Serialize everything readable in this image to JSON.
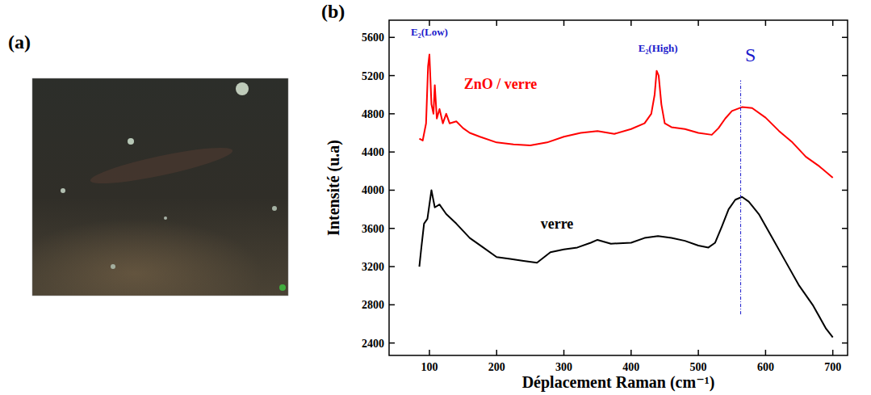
{
  "chart_data": [
    {
      "type": "image",
      "panel_label": "(a)"
    },
    {
      "type": "line",
      "panel_label": "(b)",
      "xlabel": "Déplacement Raman (cm⁻¹)",
      "ylabel": "Intensité (u.a)",
      "xlim": [
        40,
        722
      ],
      "ylim": [
        2270,
        5780
      ],
      "xticks": [
        100,
        200,
        300,
        400,
        500,
        600,
        700
      ],
      "yticks": [
        2400,
        2800,
        3200,
        3600,
        4000,
        4400,
        4800,
        5200,
        5600
      ],
      "grid": false,
      "series": [
        {
          "name": "ZnO / verre",
          "color": "#ff0000",
          "x": [
            85,
            90,
            95,
            98,
            100,
            103,
            106,
            108,
            111,
            115,
            120,
            125,
            130,
            140,
            150,
            160,
            175,
            200,
            225,
            250,
            275,
            300,
            325,
            350,
            375,
            400,
            420,
            430,
            435,
            438,
            441,
            445,
            450,
            460,
            480,
            500,
            520,
            530,
            540,
            550,
            565,
            580,
            600,
            620,
            640,
            660,
            680,
            700
          ],
          "values": [
            4540,
            4520,
            4700,
            5300,
            5420,
            4900,
            4800,
            5100,
            4750,
            4850,
            4700,
            4800,
            4700,
            4720,
            4650,
            4600,
            4560,
            4500,
            4480,
            4470,
            4500,
            4560,
            4600,
            4620,
            4590,
            4640,
            4700,
            4800,
            5000,
            5250,
            5200,
            4900,
            4700,
            4660,
            4640,
            4600,
            4580,
            4650,
            4750,
            4830,
            4870,
            4860,
            4760,
            4620,
            4500,
            4350,
            4250,
            4130
          ]
        },
        {
          "name": "verre",
          "color": "#000000",
          "x": [
            85,
            88,
            92,
            97,
            103,
            108,
            115,
            125,
            140,
            160,
            180,
            200,
            220,
            240,
            260,
            280,
            300,
            320,
            340,
            350,
            370,
            400,
            420,
            440,
            460,
            480,
            500,
            515,
            525,
            535,
            545,
            555,
            565,
            575,
            590,
            610,
            630,
            650,
            670,
            690,
            700
          ],
          "values": [
            3200,
            3400,
            3650,
            3700,
            4000,
            3820,
            3850,
            3750,
            3650,
            3500,
            3400,
            3300,
            3280,
            3260,
            3240,
            3350,
            3380,
            3400,
            3450,
            3480,
            3440,
            3450,
            3500,
            3520,
            3500,
            3470,
            3420,
            3400,
            3450,
            3620,
            3800,
            3900,
            3930,
            3880,
            3750,
            3500,
            3250,
            3000,
            2800,
            2550,
            2460
          ]
        }
      ],
      "annotations": [
        {
          "text": "E₂(Low)",
          "x": 100,
          "y": 5620,
          "color": "#1a1acc"
        },
        {
          "text": "E₂(High)",
          "x": 440,
          "y": 5450,
          "color": "#1a1acc"
        },
        {
          "text": "S",
          "x": 563,
          "y": 5350,
          "color": "#1a1acc",
          "line_y": [
            2700,
            5150
          ]
        }
      ]
    }
  ]
}
